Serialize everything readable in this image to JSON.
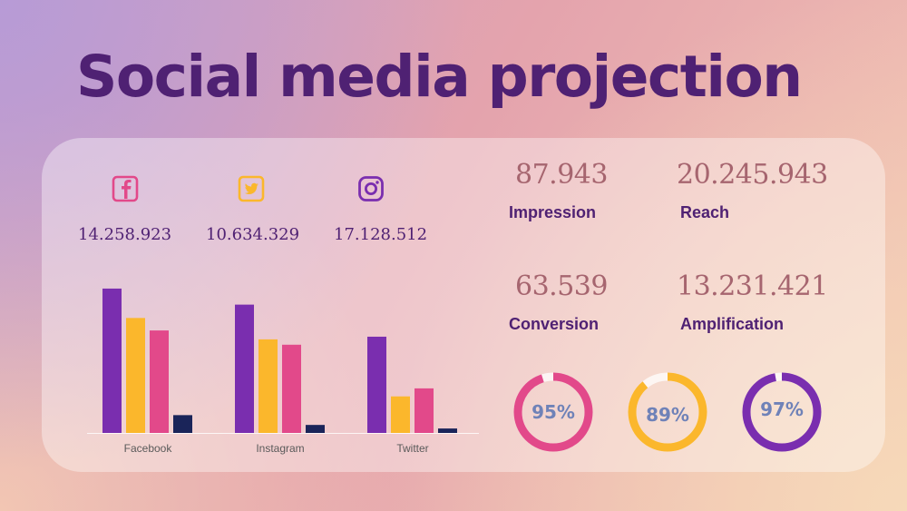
{
  "title": "Social media projection",
  "platforms": [
    {
      "name": "facebook",
      "icon": "facebook-icon",
      "count": "14.258.923"
    },
    {
      "name": "twitter",
      "icon": "twitter-icon",
      "count": "10.634.329"
    },
    {
      "name": "instagram",
      "icon": "instagram-icon",
      "count": "17.128.512"
    }
  ],
  "metrics": {
    "impression": {
      "value": "87.943",
      "label": "Impression"
    },
    "reach": {
      "value": "20.245.943",
      "label": "Reach"
    },
    "conversion": {
      "value": "63.539",
      "label": "Conversion"
    },
    "amplification": {
      "value": "13.231.421",
      "label": "Amplification"
    }
  },
  "donuts": [
    {
      "value": 95,
      "label": "95%",
      "color": "#e2498a"
    },
    {
      "value": 89,
      "label": "89%",
      "color": "#fbb72c"
    },
    {
      "value": 97,
      "label": "97%",
      "color": "#7a2eaf"
    }
  ],
  "colors": {
    "purple": "#7a2eaf",
    "yellow": "#fbb72c",
    "pink": "#e2498a",
    "navy": "#1a2459",
    "title": "#4f2173"
  },
  "chart_data": {
    "type": "bar",
    "categories": [
      "Facebook",
      "Instagram",
      "Twitter"
    ],
    "series": [
      {
        "values": [
          162,
          144,
          108
        ],
        "color": "#7a2eaf"
      },
      {
        "values": [
          129,
          105,
          41
        ],
        "color": "#fbb72c"
      },
      {
        "values": [
          115,
          99,
          50
        ],
        "color": "#e2498a"
      },
      {
        "values": [
          20,
          9,
          5
        ],
        "color": "#1a2459"
      }
    ],
    "ylim": [
      0,
      165
    ],
    "grid": false,
    "legend": "none"
  }
}
